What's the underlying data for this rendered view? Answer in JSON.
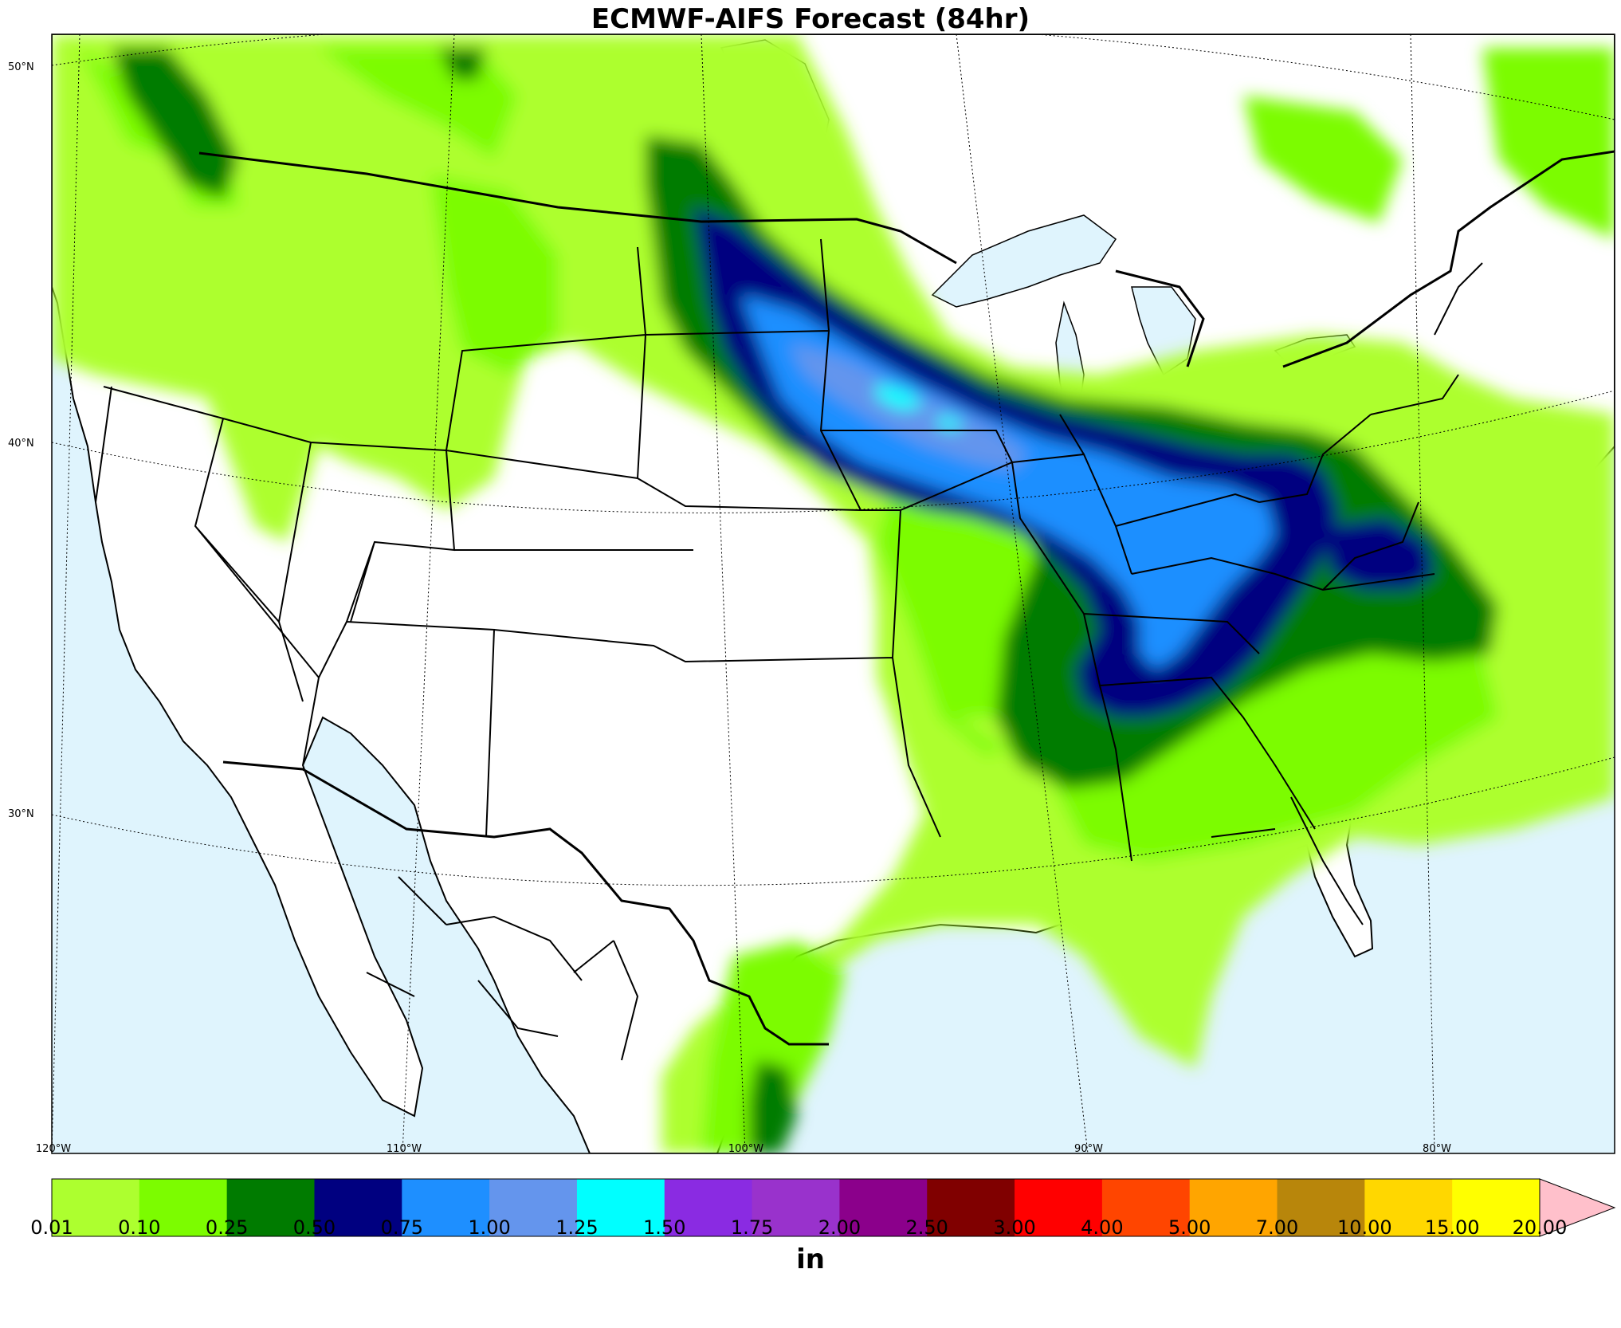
{
  "title": "ECMWF-AIFS Forecast (84hr)",
  "map": {
    "type": "precipitation-accumulation",
    "region": "Continental United States",
    "latitude_labels": [
      "50°N",
      "40°N",
      "30°N"
    ],
    "longitude_labels": [
      "120°W",
      "110°W",
      "100°W",
      "90°W",
      "80°W"
    ],
    "ocean_color": "#dff4fd",
    "land_color": "#ffffff",
    "boundary_color": "#000000"
  },
  "colorbar": {
    "unit": "in",
    "levels": [
      "0.01",
      "0.10",
      "0.25",
      "0.50",
      "0.75",
      "1.00",
      "1.25",
      "1.50",
      "1.75",
      "2.00",
      "2.50",
      "3.00",
      "4.00",
      "5.00",
      "7.00",
      "10.00",
      "15.00",
      "20.00"
    ],
    "colors": [
      "#adff2f",
      "#7cfc00",
      "#007b00",
      "#000080",
      "#1e8fff",
      "#6495ed",
      "#00ffff",
      "#8a2be2",
      "#9932cc",
      "#8b008b",
      "#800000",
      "#ff0000",
      "#ff4500",
      "#ffa500",
      "#b8860b",
      "#ffd700",
      "#ffff00",
      "#ffc0cb"
    ],
    "extend": "max"
  }
}
